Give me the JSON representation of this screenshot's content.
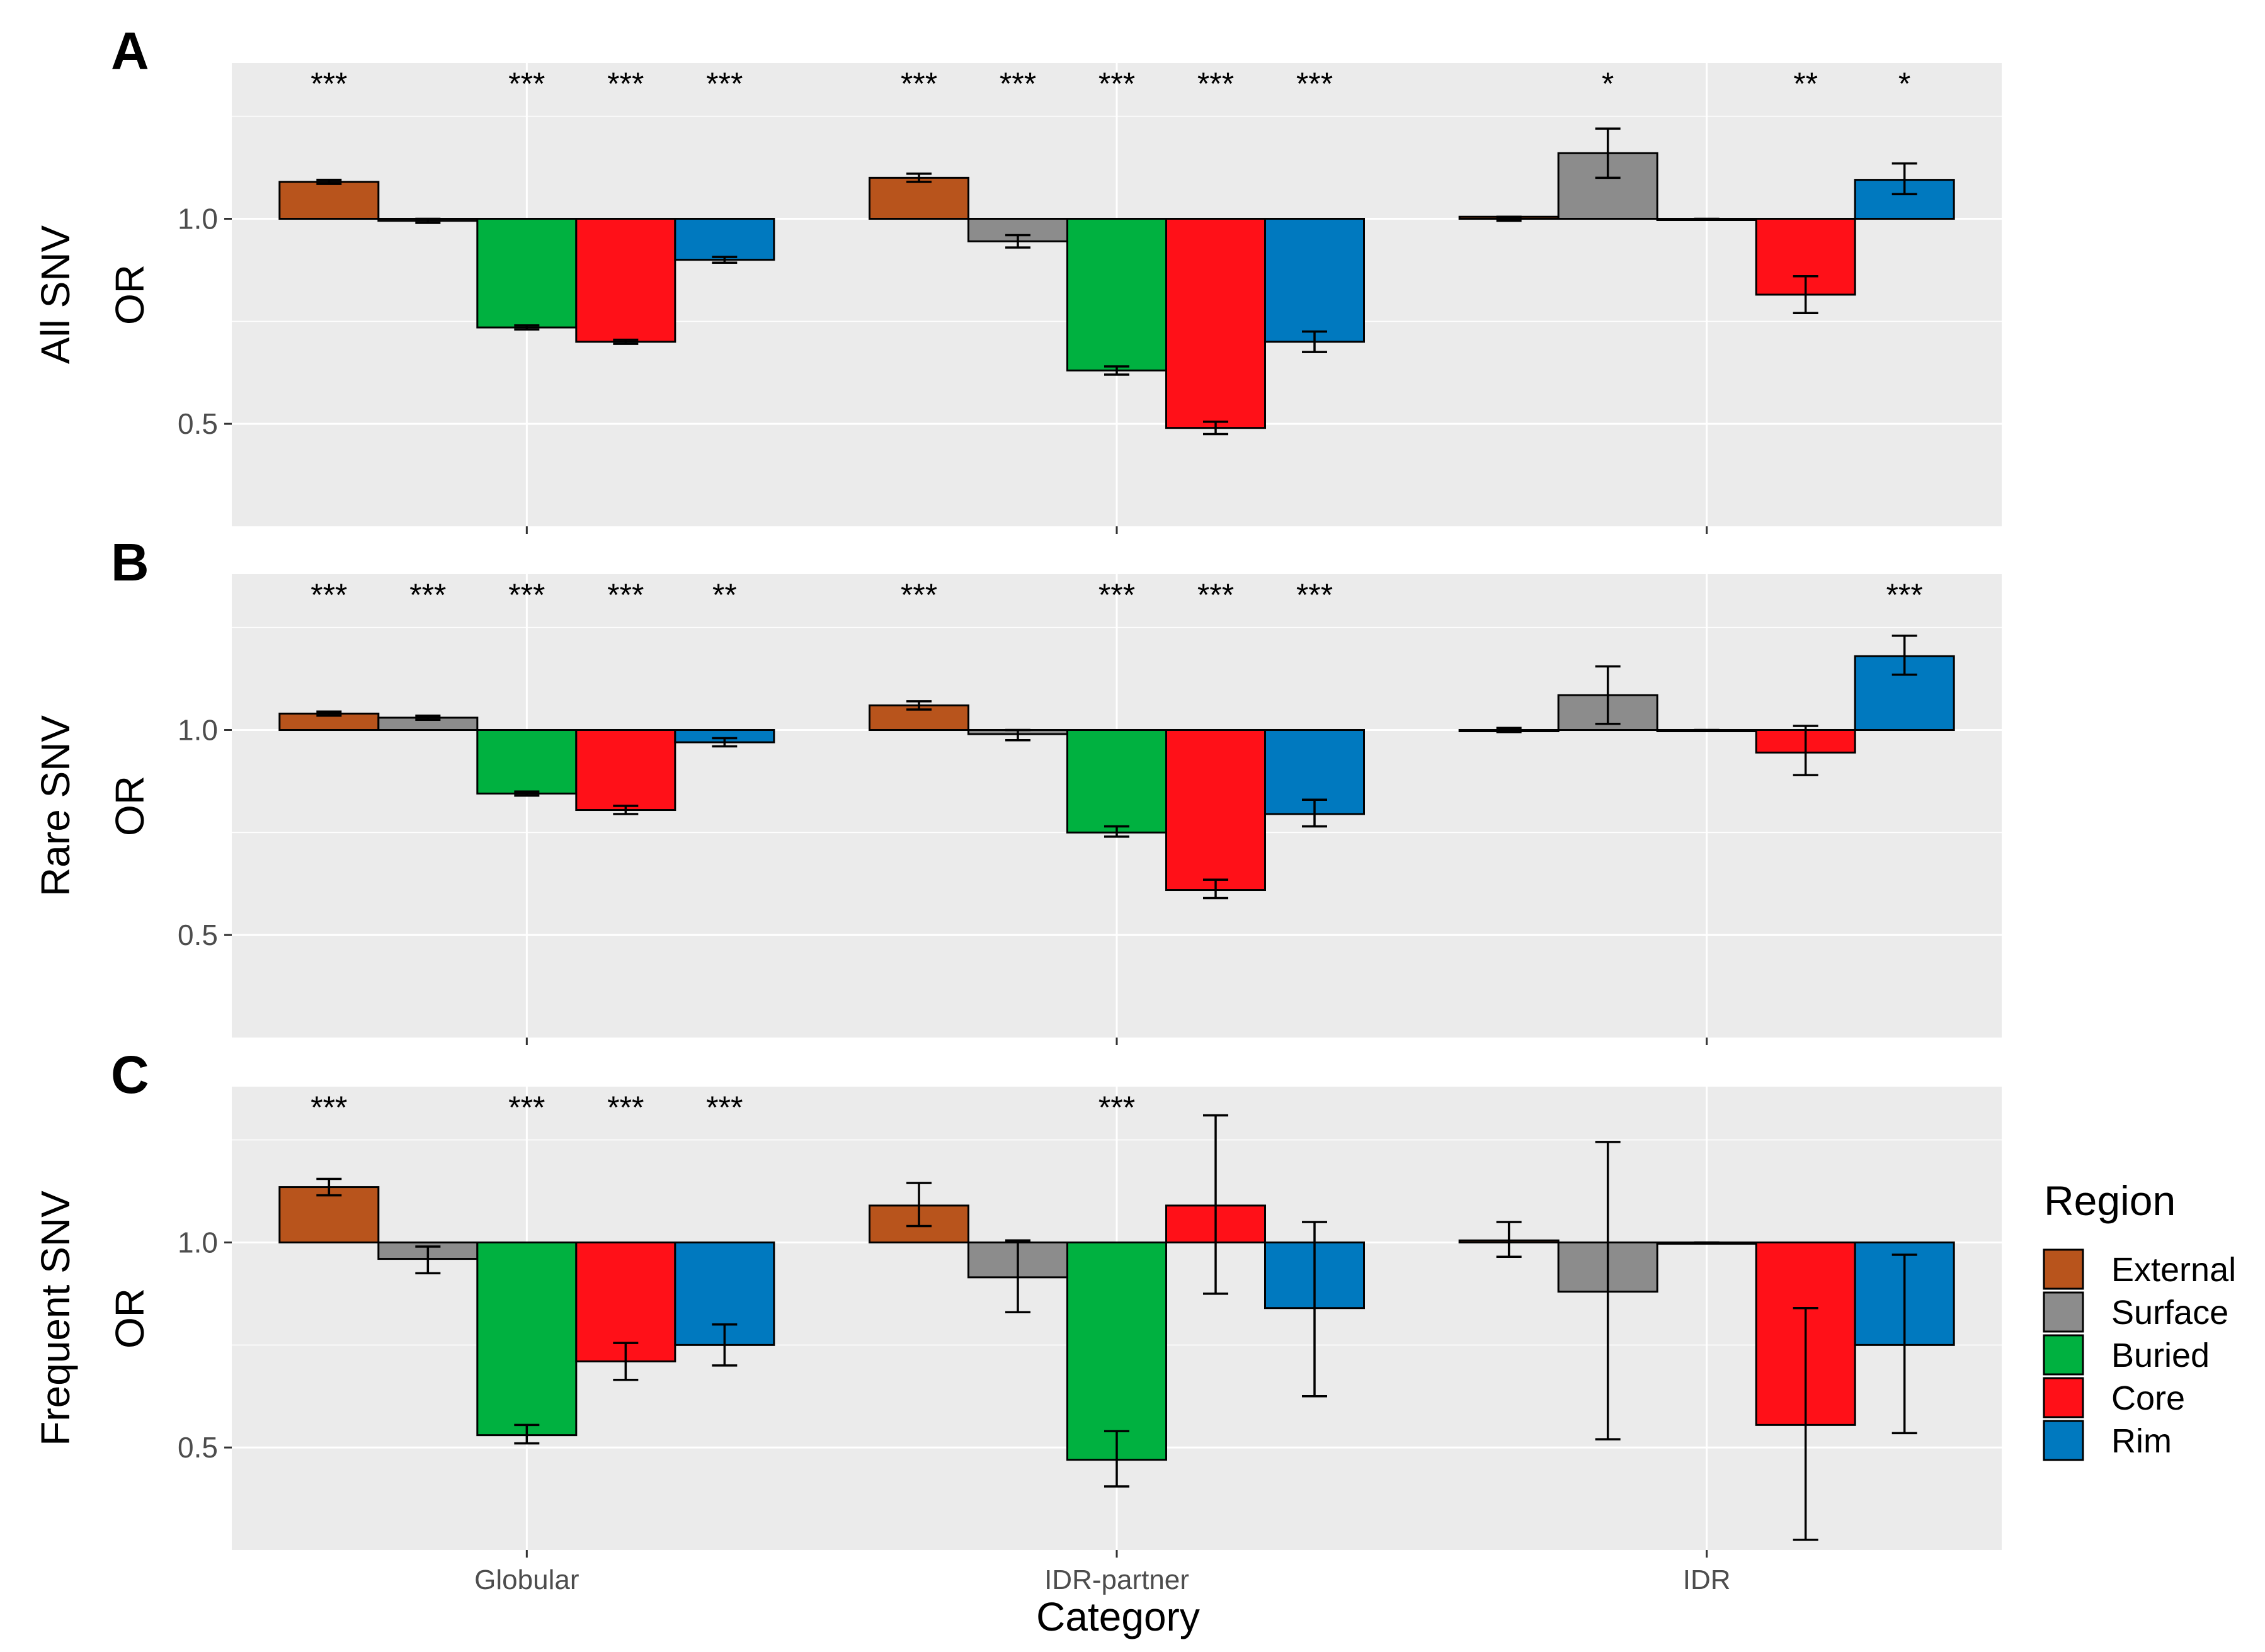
{
  "chart_data": {
    "type": "bar",
    "x_title": "Category",
    "categories": [
      "Globular",
      "IDR-partner",
      "IDR"
    ],
    "regions": [
      "External",
      "Surface",
      "Buried",
      "Core",
      "Rim"
    ],
    "colors": {
      "External": "#b8541c",
      "Surface": "#8c8c8c",
      "Buried": "#00b140",
      "Core": "#ff1018",
      "Rim": "#0079bf"
    },
    "legend": {
      "title": "Region",
      "position": "right"
    },
    "ylim": [
      0.25,
      1.38
    ],
    "y_ticks": [
      0.5,
      1.0
    ],
    "y_tick_labels": [
      "0.5",
      "1.0"
    ],
    "baseline": 1.0,
    "panels": [
      {
        "letter": "A",
        "ylabel_main": "All SNV",
        "ylabel_sub": "OR",
        "series": [
          {
            "name": "External",
            "values": [
              1.09,
              1.1,
              1.005
            ],
            "err_low": [
              1.085,
              1.09,
              0.995
            ],
            "err_high": [
              1.095,
              1.11,
              1.005
            ],
            "sig": [
              "***",
              "***",
              ""
            ]
          },
          {
            "name": "Surface",
            "values": [
              0.995,
              0.945,
              1.16
            ],
            "err_low": [
              0.99,
              0.93,
              1.1
            ],
            "err_high": [
              1.0,
              0.96,
              1.22
            ],
            "sig": [
              "",
              "***",
              "*"
            ]
          },
          {
            "name": "Buried",
            "values": [
              0.735,
              0.63,
              1.0
            ],
            "err_low": [
              0.73,
              0.62,
              1.0
            ],
            "err_high": [
              0.74,
              0.64,
              1.0
            ],
            "sig": [
              "***",
              "***",
              ""
            ]
          },
          {
            "name": "Core",
            "values": [
              0.7,
              0.49,
              0.815
            ],
            "err_low": [
              0.695,
              0.475,
              0.77
            ],
            "err_high": [
              0.705,
              0.505,
              0.86
            ],
            "sig": [
              "***",
              "***",
              "**"
            ]
          },
          {
            "name": "Rim",
            "values": [
              0.9,
              0.7,
              1.095
            ],
            "err_low": [
              0.893,
              0.675,
              1.06
            ],
            "err_high": [
              0.907,
              0.725,
              1.135
            ],
            "sig": [
              "***",
              "***",
              "*"
            ]
          }
        ]
      },
      {
        "letter": "B",
        "ylabel_main": "Rare SNV",
        "ylabel_sub": "OR",
        "series": [
          {
            "name": "External",
            "values": [
              1.04,
              1.06,
              1.0
            ],
            "err_low": [
              1.035,
              1.05,
              0.995
            ],
            "err_high": [
              1.045,
              1.07,
              1.005
            ],
            "sig": [
              "***",
              "***",
              ""
            ]
          },
          {
            "name": "Surface",
            "values": [
              1.03,
              0.99,
              1.085
            ],
            "err_low": [
              1.025,
              0.975,
              1.015
            ],
            "err_high": [
              1.035,
              1.0,
              1.155
            ],
            "sig": [
              "***",
              "",
              ""
            ]
          },
          {
            "name": "Buried",
            "values": [
              0.845,
              0.75,
              1.0
            ],
            "err_low": [
              0.84,
              0.74,
              1.0
            ],
            "err_high": [
              0.85,
              0.765,
              1.0
            ],
            "sig": [
              "***",
              "***",
              ""
            ]
          },
          {
            "name": "Core",
            "values": [
              0.805,
              0.61,
              0.945
            ],
            "err_low": [
              0.795,
              0.59,
              0.89
            ],
            "err_high": [
              0.815,
              0.635,
              1.01
            ],
            "sig": [
              "***",
              "***",
              ""
            ]
          },
          {
            "name": "Rim",
            "values": [
              0.97,
              0.795,
              1.18
            ],
            "err_low": [
              0.96,
              0.765,
              1.135
            ],
            "err_high": [
              0.98,
              0.83,
              1.23
            ],
            "sig": [
              "**",
              "***",
              "***"
            ]
          }
        ]
      },
      {
        "letter": "C",
        "ylabel_main": "Frequent SNV",
        "ylabel_sub": "OR",
        "series": [
          {
            "name": "External",
            "values": [
              1.135,
              1.09,
              1.005
            ],
            "err_low": [
              1.115,
              1.04,
              0.965
            ],
            "err_high": [
              1.155,
              1.145,
              1.05
            ],
            "sig": [
              "***",
              "",
              ""
            ]
          },
          {
            "name": "Surface",
            "values": [
              0.96,
              0.915,
              0.88
            ],
            "err_low": [
              0.925,
              0.83,
              0.52
            ],
            "err_high": [
              0.99,
              1.005,
              1.245
            ],
            "sig": [
              "",
              "",
              ""
            ]
          },
          {
            "name": "Buried",
            "values": [
              0.53,
              0.47,
              1.0
            ],
            "err_low": [
              0.51,
              0.405,
              1.0
            ],
            "err_high": [
              0.555,
              0.54,
              1.0
            ],
            "sig": [
              "***",
              "***",
              ""
            ]
          },
          {
            "name": "Core",
            "values": [
              0.71,
              1.09,
              0.555
            ],
            "err_low": [
              0.665,
              0.875,
              0.275
            ],
            "err_high": [
              0.755,
              1.31,
              0.84
            ],
            "sig": [
              "***",
              "",
              ""
            ]
          },
          {
            "name": "Rim",
            "values": [
              0.75,
              0.84,
              0.75
            ],
            "err_low": [
              0.7,
              0.625,
              0.535
            ],
            "err_high": [
              0.8,
              1.05,
              0.97
            ],
            "sig": [
              "***",
              "",
              ""
            ]
          }
        ]
      }
    ]
  }
}
